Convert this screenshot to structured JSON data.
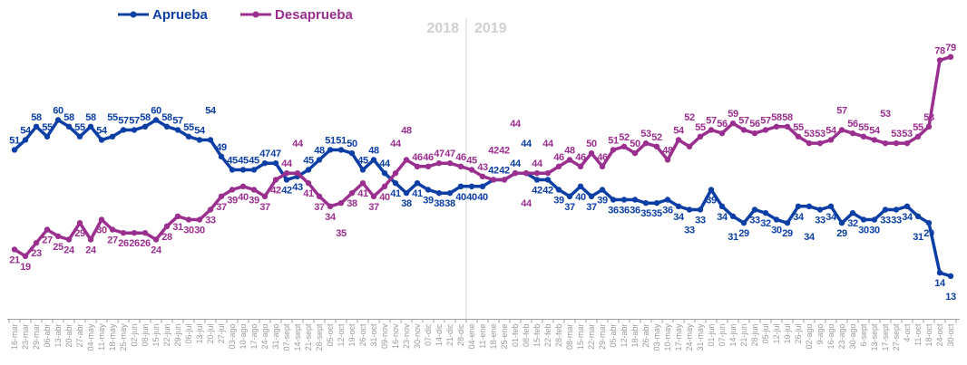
{
  "chart_data": {
    "type": "line",
    "title": "",
    "xlabel": "",
    "ylabel": "",
    "ylim": [
      0,
      96
    ],
    "grid": false,
    "legend_placement": "top-left",
    "year_labels": [
      "2018",
      "2019"
    ],
    "year_divider_after": "28-dic",
    "categories": [
      "16-mar",
      "23-mar",
      "29-mar",
      "06-abr",
      "13-abr",
      "20-abr",
      "27-abr",
      "04-may",
      "11-may",
      "18-may",
      "25-may",
      "02-jun",
      "08-jun",
      "15-jun",
      "22-jun",
      "29-jun",
      "06-jul",
      "13-jul",
      "20-jul",
      "27-jul",
      "03-ago",
      "10-ago",
      "17-ago",
      "24-ago",
      "31-ago",
      "07-sept",
      "14-sept",
      "21-sept",
      "28-sept",
      "05-oct",
      "12-oct",
      "19-oct",
      "26-oct",
      "31-oct",
      "09-nov",
      "16-nov",
      "23-nov",
      "30-nov",
      "07-dic",
      "14-dic",
      "21-dic",
      "28-dic",
      "04-ene",
      "11-ene",
      "18-ene",
      "25-ene",
      "01-feb",
      "08-feb",
      "15-feb",
      "22-feb",
      "28-feb",
      "08-mar",
      "15-mar",
      "22-mar",
      "29-mar",
      "05-abr",
      "12-abr",
      "18-abr",
      "26-abr",
      "03-may",
      "10-may",
      "17-may",
      "24-may",
      "31-may",
      "01-jun",
      "07-jun",
      "14-jun",
      "21-jun",
      "28-jun",
      "05-jul",
      "12-jul",
      "19-jul",
      "26-jul",
      "02-ago",
      "9-ago",
      "16-ago",
      "23-ago",
      "30-ago",
      "6-sept",
      "13-sept",
      "17-sept",
      "27-sept",
      "4-oct",
      "11-oct",
      "18-oct",
      "24-oct",
      "30-oct"
    ],
    "series": [
      {
        "name": "Aprueba",
        "color": "#0b3fa6",
        "values": [
          51,
          54,
          58,
          55,
          60,
          58,
          55,
          58,
          54,
          55,
          57,
          57,
          58,
          60,
          58,
          57,
          55,
          54,
          54,
          49,
          45,
          45,
          45,
          47,
          47,
          42,
          43,
          45,
          48,
          51,
          51,
          50,
          45,
          48,
          44,
          41,
          38,
          41,
          39,
          38,
          38,
          40,
          40,
          40,
          42,
          42,
          44,
          44,
          42,
          42,
          39,
          37,
          40,
          37,
          39,
          36,
          36,
          36,
          35,
          35,
          36,
          34,
          33,
          33,
          39,
          34,
          31,
          29,
          33,
          32,
          30,
          29,
          34,
          34,
          33,
          34,
          29,
          32,
          30,
          30,
          33,
          33,
          34,
          31,
          29,
          14,
          13
        ]
      },
      {
        "name": "Desaprueba",
        "color": "#9b2f8f",
        "values": [
          21,
          19,
          23,
          27,
          25,
          24,
          29,
          24,
          30,
          27,
          26,
          26,
          26,
          24,
          28,
          31,
          30,
          30,
          33,
          37,
          39,
          40,
          39,
          37,
          42,
          44,
          44,
          41,
          37,
          34,
          35,
          38,
          41,
          37,
          40,
          44,
          48,
          46,
          46,
          47,
          47,
          46,
          45,
          43,
          42,
          42,
          44,
          44,
          44,
          44,
          46,
          48,
          46,
          50,
          46,
          51,
          52,
          50,
          53,
          52,
          48,
          54,
          52,
          55,
          57,
          56,
          59,
          57,
          56,
          57,
          58,
          58,
          55,
          53,
          53,
          54,
          57,
          56,
          55,
          54,
          53,
          53,
          53,
          55,
          58,
          78,
          79
        ]
      }
    ]
  }
}
